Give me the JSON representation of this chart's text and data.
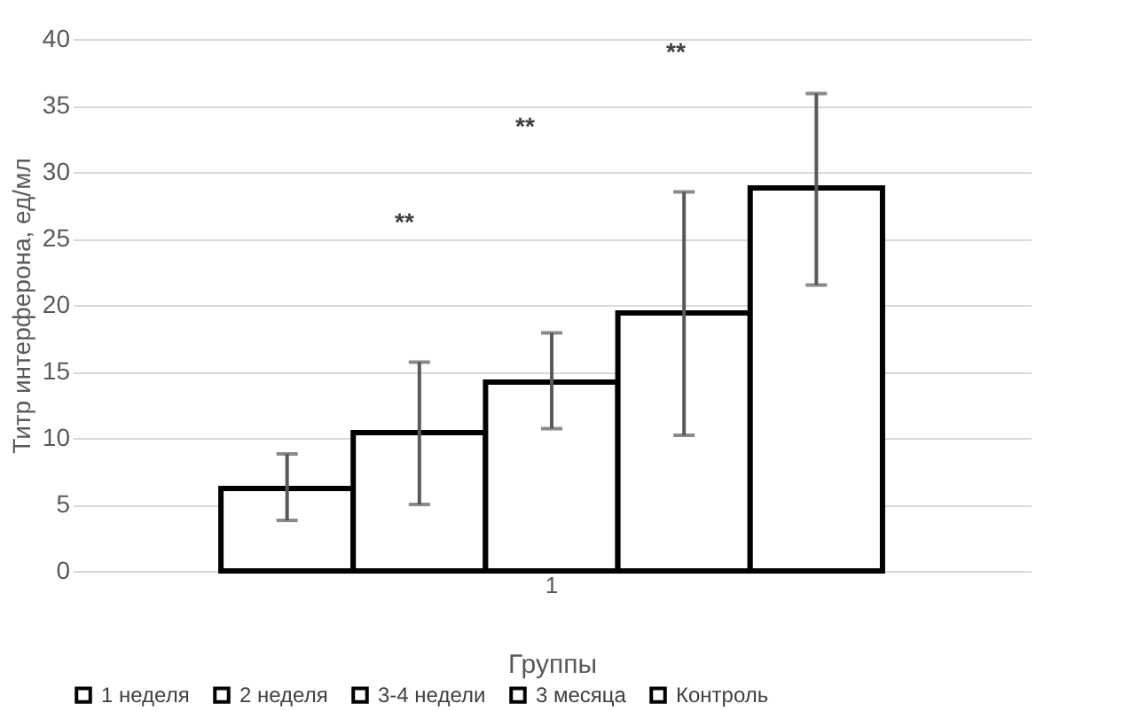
{
  "chart_data": {
    "type": "bar",
    "xlabel": "Группы",
    "ylabel": "Титр интерферона, ед/мл",
    "categories": [
      "1"
    ],
    "series": [
      {
        "name": "1 неделя",
        "color": "#ffffff",
        "values": [
          6.2
        ],
        "errors": [
          [
            3.8,
            8.8
          ]
        ]
      },
      {
        "name": "2 неделя",
        "color": "#ffffff",
        "values": [
          10.4
        ],
        "errors": [
          [
            5.0,
            15.7
          ]
        ]
      },
      {
        "name": "3-4 недели",
        "color": "#ffffff",
        "values": [
          14.2
        ],
        "errors": [
          [
            10.7,
            17.9
          ]
        ]
      },
      {
        "name": "3 месяца",
        "color": "#ffffff",
        "values": [
          19.4
        ],
        "errors": [
          [
            10.2,
            28.5
          ]
        ]
      },
      {
        "name": "Контроль",
        "color": "#ffffff",
        "values": [
          28.8
        ],
        "errors": [
          [
            21.5,
            35.9
          ]
        ]
      }
    ],
    "annotations": [
      "**",
      "**",
      "**"
    ],
    "ylim": [
      0,
      40
    ],
    "yticks": [
      0,
      5,
      10,
      15,
      20,
      25,
      30,
      35,
      40
    ],
    "grid": "y",
    "legend": "bottom"
  }
}
